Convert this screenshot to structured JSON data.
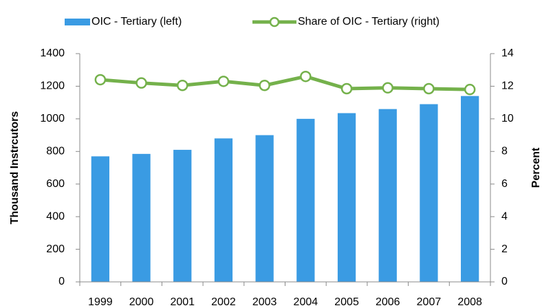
{
  "chart_data": {
    "type": "bar",
    "categories": [
      "1999",
      "2000",
      "2001",
      "2002",
      "2003",
      "2004",
      "2005",
      "2006",
      "2007",
      "2008"
    ],
    "series": [
      {
        "name": "OIC - Tertiary (left)",
        "type": "bar",
        "color": "#3a9be3",
        "values": [
          770,
          785,
          810,
          880,
          900,
          1000,
          1035,
          1060,
          1090,
          1140
        ]
      },
      {
        "name": "Share of OIC - Tertiary (right)",
        "type": "line",
        "axis": "y2",
        "color": "#74b14b",
        "values": [
          12.4,
          12.2,
          12.05,
          12.3,
          12.05,
          12.6,
          11.85,
          11.9,
          11.85,
          11.8
        ]
      }
    ],
    "ylabel": "Thousand Instrcutors",
    "y2label": "Percent",
    "ylim": [
      0,
      1400
    ],
    "yticks": [
      0,
      200,
      400,
      600,
      800,
      1000,
      1200,
      1400
    ],
    "y2lim": [
      0,
      14
    ],
    "y2ticks": [
      0,
      2,
      4,
      6,
      8,
      10,
      12,
      14
    ],
    "legend": "top"
  }
}
